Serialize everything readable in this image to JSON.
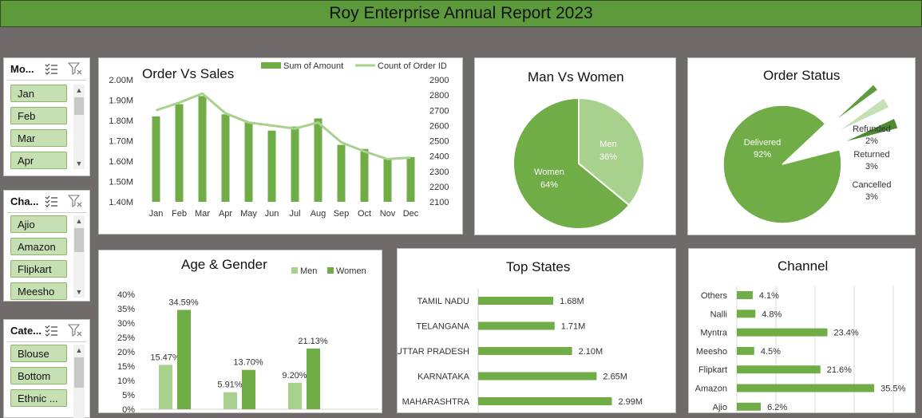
{
  "header": {
    "title": "Roy Enterprise Annual Report 2023"
  },
  "slicers": {
    "month": {
      "label": "Mo...",
      "items": [
        "Jan",
        "Feb",
        "Mar",
        "Apr"
      ]
    },
    "channel": {
      "label": "Cha...",
      "items": [
        "Ajio",
        "Amazon",
        "Flipkart",
        "Meesho"
      ]
    },
    "category": {
      "label": "Cate...",
      "items": [
        "Blouse",
        "Bottom",
        "Ethnic ..."
      ]
    }
  },
  "icons": {
    "multi_select": "multi-select-icon",
    "clear_filter": "clear-filter-icon",
    "scroll_up": "▲",
    "scroll_down": "▼"
  },
  "colors": {
    "dark_green": "#5e9b3c",
    "mid_green": "#70ad47",
    "light_green": "#a9d18e",
    "pale_green": "#c6e0b4"
  },
  "cards": {
    "order_vs_sales": "Order Vs Sales",
    "man_vs_women": "Man Vs Women",
    "order_status": "Order Status",
    "age_gender": "Age & Gender",
    "top_states": "Top States",
    "channel": "Channel"
  },
  "chart_data": [
    {
      "id": "order_vs_sales",
      "type": "bar",
      "title": "Order Vs Sales",
      "categories": [
        "Jan",
        "Feb",
        "Mar",
        "Apr",
        "May",
        "Jun",
        "Jul",
        "Aug",
        "Sep",
        "Oct",
        "Nov",
        "Dec"
      ],
      "series": [
        {
          "name": "Sum of Amount",
          "type": "bar",
          "axis": "left",
          "values": [
            1.82,
            1.88,
            1.92,
            1.83,
            1.79,
            1.75,
            1.77,
            1.81,
            1.68,
            1.66,
            1.61,
            1.62
          ]
        },
        {
          "name": "Count of Order ID",
          "type": "line",
          "axis": "right",
          "values": [
            2700,
            2750,
            2810,
            2680,
            2620,
            2600,
            2580,
            2620,
            2490,
            2430,
            2380,
            2390
          ]
        }
      ],
      "y_left": {
        "ticks": [
          "2.00M",
          "1.90M",
          "1.80M",
          "1.70M",
          "1.60M",
          "1.50M",
          "1.40M"
        ],
        "ylim": [
          1.4,
          2.0
        ]
      },
      "y_right": {
        "ticks": [
          "2900",
          "2800",
          "2700",
          "2600",
          "2500",
          "2400",
          "2300",
          "2200",
          "2100"
        ],
        "ylim": [
          2100,
          2900
        ]
      },
      "legend": "top"
    },
    {
      "id": "man_vs_women",
      "type": "pie",
      "title": "Man Vs Women",
      "slices": [
        {
          "label": "Men",
          "value": 36,
          "text": "36%"
        },
        {
          "label": "Women",
          "value": 64,
          "text": "64%"
        }
      ]
    },
    {
      "id": "order_status",
      "type": "pie",
      "title": "Order Status",
      "slices": [
        {
          "label": "Delivered",
          "value": 92,
          "text": "92%"
        },
        {
          "label": "Refunded",
          "value": 2,
          "text": "2%"
        },
        {
          "label": "Returned",
          "value": 3,
          "text": "3%"
        },
        {
          "label": "Cancelled",
          "value": 3,
          "text": "3%"
        }
      ]
    },
    {
      "id": "age_gender",
      "type": "bar",
      "title": "Age & Gender",
      "series": [
        {
          "name": "Men",
          "values": [
            15.47,
            5.91,
            9.2
          ],
          "labels": [
            "15.47%",
            "5.91%",
            "9.20%"
          ]
        },
        {
          "name": "Women",
          "values": [
            34.59,
            13.7,
            21.13
          ],
          "labels": [
            "34.59%",
            "13.70%",
            "21.13%"
          ]
        }
      ],
      "y_ticks": [
        "40%",
        "35%",
        "30%",
        "25%",
        "20%",
        "15%",
        "10%",
        "5%",
        "0%"
      ],
      "ylim": [
        0,
        40
      ],
      "legend": "top-right"
    },
    {
      "id": "top_states",
      "type": "bar",
      "orientation": "horizontal",
      "title": "Top States",
      "categories": [
        "TAMIL NADU",
        "TELANGANA",
        "UTTAR PRADESH",
        "KARNATAKA",
        "MAHARASHTRA"
      ],
      "values": [
        1.68,
        1.71,
        2.1,
        2.65,
        2.99
      ],
      "labels": [
        "1.68M",
        "1.71M",
        "2.10M",
        "2.65M",
        "2.99M"
      ]
    },
    {
      "id": "channel",
      "type": "bar",
      "orientation": "horizontal",
      "title": "Channel",
      "categories": [
        "Others",
        "Nalli",
        "Myntra",
        "Meesho",
        "Flipkart",
        "Amazon",
        "Ajio"
      ],
      "values": [
        4.1,
        4.8,
        23.4,
        4.5,
        21.6,
        35.5,
        6.2
      ],
      "labels": [
        "4.1%",
        "4.8%",
        "23.4%",
        "4.5%",
        "21.6%",
        "35.5%",
        "6.2%"
      ],
      "grid": true
    }
  ]
}
